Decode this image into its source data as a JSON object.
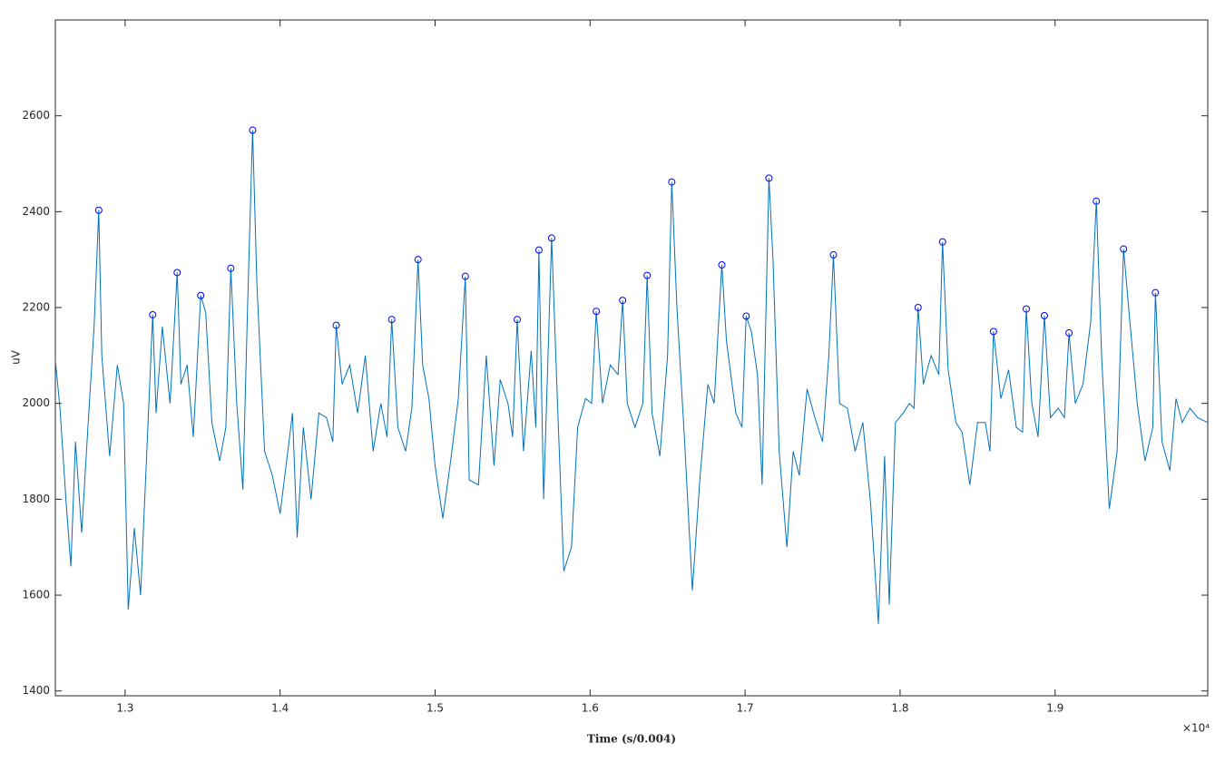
{
  "chart_data": {
    "type": "line",
    "xlabel": "Time (s/0.004)",
    "ylabel": "uV",
    "x_exponent_label": "×10⁴",
    "xlim": [
      12550,
      19985
    ],
    "ylim": [
      1390,
      2800
    ],
    "xticks": [
      {
        "value": 13000,
        "label": "1.3"
      },
      {
        "value": 14000,
        "label": "1.4"
      },
      {
        "value": 15000,
        "label": "1.5"
      },
      {
        "value": 16000,
        "label": "1.6"
      },
      {
        "value": 17000,
        "label": "1.7"
      },
      {
        "value": 18000,
        "label": "1.8"
      },
      {
        "value": 19000,
        "label": "1.9"
      }
    ],
    "yticks": [
      1400,
      1600,
      1800,
      2000,
      2200,
      2400,
      2600
    ],
    "series": [
      {
        "mode": "line",
        "color": "#0072bd",
        "x": [
          12550,
          12580,
          12620,
          12650,
          12680,
          12720,
          12760,
          12800,
          12830,
          12850,
          12900,
          12950,
          12990,
          13020,
          13060,
          13100,
          13140,
          13178,
          13200,
          13240,
          13290,
          13336,
          13360,
          13400,
          13440,
          13488,
          13520,
          13560,
          13610,
          13650,
          13682,
          13720,
          13760,
          13790,
          13823,
          13850,
          13900,
          13950,
          14000,
          14050,
          14080,
          14110,
          14150,
          14200,
          14250,
          14300,
          14340,
          14362,
          14400,
          14450,
          14500,
          14550,
          14600,
          14650,
          14690,
          14720,
          14760,
          14810,
          14850,
          14890,
          14920,
          14960,
          15000,
          15050,
          15100,
          15150,
          15195,
          15220,
          15280,
          15330,
          15380,
          15420,
          15470,
          15500,
          15530,
          15570,
          15620,
          15650,
          15670,
          15700,
          15752,
          15790,
          15830,
          15880,
          15920,
          15970,
          16010,
          16040,
          16080,
          16130,
          16180,
          16210,
          16240,
          16290,
          16340,
          16368,
          16400,
          16450,
          16500,
          16527,
          16560,
          16610,
          16660,
          16710,
          16760,
          16800,
          16850,
          16880,
          16940,
          16980,
          17007,
          17040,
          17080,
          17110,
          17154,
          17180,
          17220,
          17270,
          17310,
          17350,
          17400,
          17450,
          17500,
          17540,
          17570,
          17610,
          17660,
          17710,
          17760,
          17810,
          17860,
          17900,
          17930,
          17970,
          18020,
          18060,
          18090,
          18116,
          18150,
          18200,
          18250,
          18274,
          18310,
          18360,
          18400,
          18450,
          18500,
          18550,
          18580,
          18603,
          18650,
          18700,
          18750,
          18790,
          18814,
          18850,
          18890,
          18931,
          18970,
          19020,
          19060,
          19090,
          19130,
          19180,
          19230,
          19266,
          19300,
          19350,
          19400,
          19442,
          19480,
          19530,
          19580,
          19630,
          19647,
          19690,
          19740,
          19780,
          19820,
          19870,
          19920,
          19985
        ],
        "values": [
          2090,
          1990,
          1790,
          1660,
          1920,
          1730,
          1950,
          2160,
          2403,
          2100,
          1890,
          2080,
          2000,
          1570,
          1740,
          1600,
          1900,
          2185,
          1980,
          2160,
          2000,
          2273,
          2040,
          2080,
          1930,
          2225,
          2190,
          1960,
          1880,
          1950,
          2282,
          2000,
          1820,
          2200,
          2570,
          2250,
          1900,
          1850,
          1770,
          1900,
          1980,
          1720,
          1950,
          1800,
          1980,
          1970,
          1920,
          2163,
          2040,
          2080,
          1980,
          2100,
          1900,
          2000,
          1930,
          2175,
          1950,
          1900,
          1990,
          2300,
          2080,
          2010,
          1870,
          1760,
          1880,
          2010,
          2265,
          1840,
          1830,
          2100,
          1870,
          2050,
          2000,
          1930,
          2175,
          1900,
          2110,
          1950,
          2320,
          1800,
          2345,
          2000,
          1650,
          1700,
          1950,
          2010,
          2000,
          2192,
          2000,
          2080,
          2060,
          2215,
          2000,
          1950,
          2000,
          2267,
          1980,
          1890,
          2100,
          2462,
          2200,
          1920,
          1610,
          1850,
          2040,
          2000,
          2289,
          2130,
          1980,
          1950,
          2182,
          2150,
          2060,
          1830,
          2470,
          2300,
          1900,
          1700,
          1900,
          1850,
          2030,
          1970,
          1920,
          2100,
          2310,
          2000,
          1990,
          1900,
          1960,
          1790,
          1540,
          1890,
          1580,
          1960,
          1980,
          2000,
          1990,
          2200,
          2040,
          2100,
          2060,
          2337,
          2070,
          1960,
          1940,
          1830,
          1960,
          1960,
          1900,
          2150,
          2010,
          2070,
          1950,
          1940,
          2197,
          2000,
          1930,
          2183,
          1970,
          1990,
          1970,
          2147,
          2000,
          2040,
          2170,
          2422,
          2100,
          1780,
          1900,
          2322,
          2180,
          2000,
          1880,
          1950,
          2231,
          1920,
          1860,
          2010,
          1960,
          1990,
          1970,
          1960
        ]
      },
      {
        "mode": "markers",
        "marker": "circle",
        "color": "#0000ff",
        "x": [
          12830,
          13178,
          13336,
          13488,
          13682,
          13823,
          14362,
          14720,
          14890,
          15195,
          15530,
          15670,
          15752,
          16040,
          16210,
          16368,
          16527,
          16850,
          17007,
          17154,
          17570,
          18116,
          18274,
          18603,
          18814,
          18931,
          19090,
          19266,
          19442,
          19647
        ],
        "values": [
          2403,
          2185,
          2273,
          2225,
          2282,
          2570,
          2163,
          2175,
          2300,
          2265,
          2175,
          2320,
          2345,
          2192,
          2215,
          2267,
          2462,
          2289,
          2182,
          2470,
          2310,
          2200,
          2337,
          2150,
          2197,
          2183,
          2147,
          2422,
          2322,
          2231
        ]
      }
    ]
  }
}
